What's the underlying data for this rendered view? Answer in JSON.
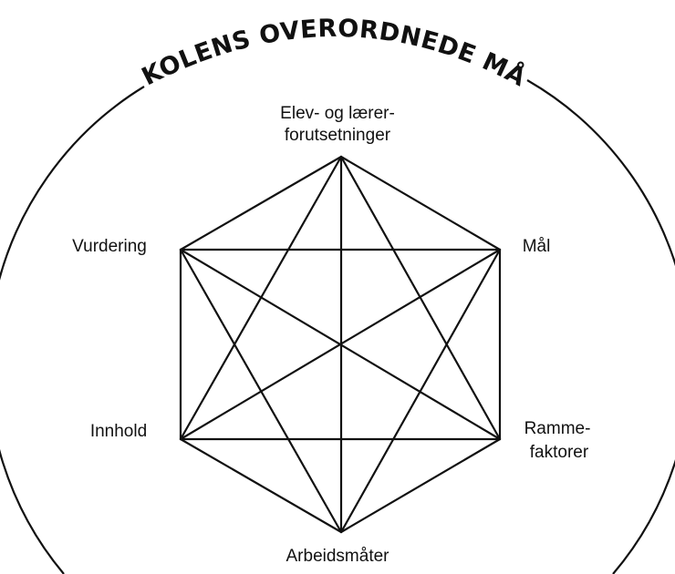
{
  "diagram": {
    "title": "SKOLENS OVERORDNEDE MÅL",
    "nodes": {
      "top": {
        "line1": "Elev- og lærer-",
        "line2": "forutsetninger"
      },
      "upper_right": {
        "label": "Mål"
      },
      "lower_right": {
        "line1": "Ramme-",
        "line2": "faktorer"
      },
      "bottom": {
        "label": "Arbeidsmåter"
      },
      "lower_left": {
        "label": "Innhold"
      },
      "upper_left": {
        "label": "Vurdering"
      }
    },
    "colors": {
      "stroke": "#111111",
      "background": "#ffffff"
    }
  }
}
